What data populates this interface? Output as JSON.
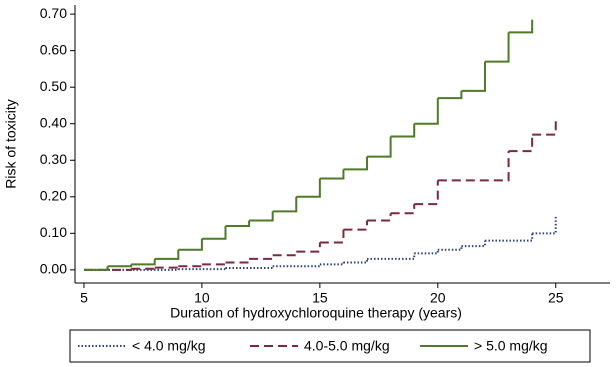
{
  "chart_data": {
    "type": "step",
    "x_label": "Duration of hydroxychloroquine therapy (years)",
    "y_label": "Risk of toxicity",
    "xlim": [
      4.62,
      27.3
    ],
    "ylim": [
      -0.036,
      0.725
    ],
    "xticks": [
      5,
      10,
      15,
      20,
      25
    ],
    "yticks": [
      {
        "value": 0,
        "label": "0.00"
      },
      {
        "value": 0.1,
        "label": "0.10"
      },
      {
        "value": 0.2,
        "label": "0.20"
      },
      {
        "value": 0.3,
        "label": "0.30"
      },
      {
        "value": 0.4,
        "label": "0.40"
      },
      {
        "value": 0.5,
        "label": "0.50"
      },
      {
        "value": 0.6,
        "label": "0.60"
      },
      {
        "value": 0.7,
        "label": "0.70"
      }
    ],
    "series": [
      {
        "name": "< 4.0 mg/kg",
        "color": "#2a3f7a",
        "dash": "1.5,2",
        "x": [
          5,
          9,
          11,
          13,
          15,
          16,
          17,
          19,
          20,
          21,
          22,
          24,
          25
        ],
        "values": [
          0,
          0.002,
          0.005,
          0.01,
          0.015,
          0.02,
          0.03,
          0.045,
          0.055,
          0.065,
          0.08,
          0.1,
          0.145
        ]
      },
      {
        "name": "4.0-5.0 mg/kg",
        "color": "#7a2a3c",
        "dash": "9,5",
        "x": [
          5,
          7,
          8,
          9,
          10,
          11,
          12,
          13,
          14,
          15,
          16,
          17,
          18,
          19,
          20,
          23,
          24,
          25
        ],
        "values": [
          0,
          0.003,
          0.006,
          0.01,
          0.015,
          0.02,
          0.03,
          0.04,
          0.05,
          0.075,
          0.11,
          0.135,
          0.155,
          0.18,
          0.245,
          0.325,
          0.37,
          0.42
        ]
      },
      {
        "name": "> 5.0 mg/kg",
        "color": "#4f7a28",
        "dash": "",
        "x": [
          5,
          6,
          7,
          8,
          9,
          10,
          11,
          12,
          13,
          14,
          15,
          16,
          17,
          18,
          19,
          20,
          21,
          22,
          23,
          24
        ],
        "values": [
          0,
          0.01,
          0.015,
          0.03,
          0.055,
          0.085,
          0.12,
          0.135,
          0.16,
          0.2,
          0.25,
          0.275,
          0.31,
          0.365,
          0.4,
          0.47,
          0.49,
          0.57,
          0.65,
          0.685
        ]
      }
    ]
  }
}
